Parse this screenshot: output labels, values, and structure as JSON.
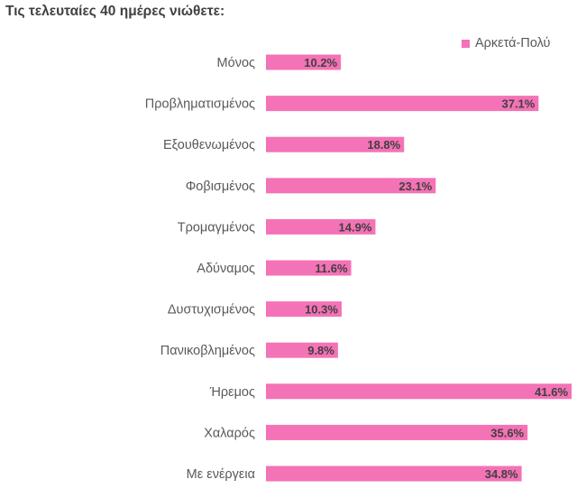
{
  "chart_data": {
    "type": "bar",
    "orientation": "horizontal",
    "title": "Τις τελευταίες 40 ημέρες νιώθετε:",
    "categories": [
      "Μόνος",
      "Προβληματισμένος",
      "Εξουθενωμένος",
      "Φοβισμένος",
      "Τρομαγμένος",
      "Αδύναμος",
      "Δυστυχισμένος",
      "Πανικοβλημένος",
      "Ήρεμος",
      "Χαλαρός",
      "Με ενέργεια"
    ],
    "series": [
      {
        "name": "Αρκετά-Πολύ",
        "values": [
          10.2,
          37.1,
          18.8,
          23.1,
          14.9,
          11.6,
          10.3,
          9.8,
          41.6,
          35.6,
          34.8
        ],
        "labels": [
          "10.2%",
          "37.1%",
          "18.8%",
          "23.1%",
          "14.9%",
          "11.6%",
          "10.3%",
          "9.8%",
          "41.6%",
          "35.6%",
          "34.8%"
        ]
      }
    ],
    "xlim": [
      0,
      42
    ],
    "grid": false,
    "legend": "top-right",
    "colors": {
      "bar": "#f472b6",
      "text": "#595959",
      "title": "#404040"
    }
  }
}
